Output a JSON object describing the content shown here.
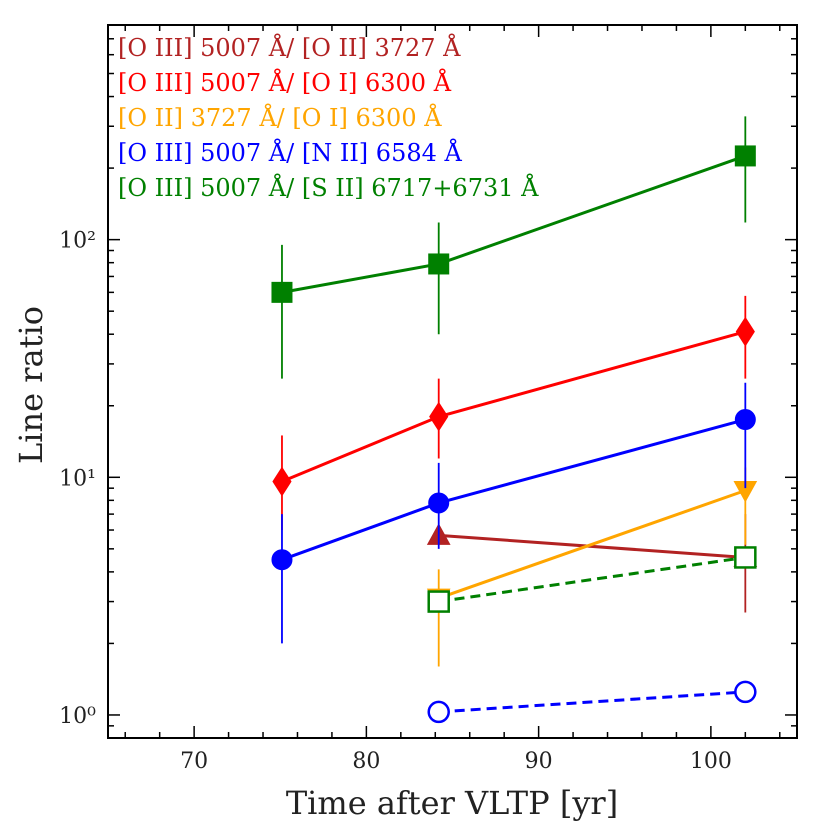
{
  "chart_data": {
    "type": "line",
    "title": "",
    "xlabel": "Time after VLTP [yr]",
    "ylabel": "Line ratio",
    "xlim": [
      65,
      105
    ],
    "ylim": [
      0.8,
      800
    ],
    "yscale": "log",
    "xticks": [
      70,
      80,
      90,
      100
    ],
    "yticks": [
      {
        "value": 1,
        "label": "10⁰"
      },
      {
        "value": 10,
        "label": "10¹"
      },
      {
        "value": 100,
        "label": "10²"
      }
    ],
    "legend_position": "top-left",
    "series": [
      {
        "name": "[O III] 5007 Å/ [O II] 3727 Å",
        "color": "#b22222",
        "marker": "triangle-up",
        "filled": true,
        "linestyle": "solid",
        "points": [
          {
            "x": 84.2,
            "y": 5.7,
            "lo": 5.7,
            "hi": 5.7
          },
          {
            "x": 102,
            "y": 4.6,
            "lo": 2.7,
            "hi": 7.0
          }
        ]
      },
      {
        "name": "[O III] 5007 Å/ [O I] 6300 Å",
        "color": "#ff0000",
        "marker": "diamond",
        "filled": true,
        "linestyle": "solid",
        "points": [
          {
            "x": 75.1,
            "y": 9.6,
            "lo": 6.0,
            "hi": 15.0
          },
          {
            "x": 84.2,
            "y": 18.0,
            "lo": 12.0,
            "hi": 26.0
          },
          {
            "x": 102,
            "y": 41.0,
            "lo": 26.0,
            "hi": 58.0
          }
        ]
      },
      {
        "name": "[O II] 3727 Å/ [O I] 6300 Å",
        "color": "#ffa500",
        "marker": "triangle-down",
        "filled": true,
        "linestyle": "solid",
        "points": [
          {
            "x": 84.2,
            "y": 3.1,
            "lo": 1.6,
            "hi": 4.1
          },
          {
            "x": 102,
            "y": 8.8,
            "lo": 5.2,
            "hi": 11.0
          }
        ]
      },
      {
        "name": "[O III] 5007 Å/ [N II] 6584 Å",
        "color": "#0000ff",
        "marker": "circle",
        "filled": true,
        "linestyle": "solid",
        "points": [
          {
            "x": 75.1,
            "y": 4.5,
            "lo": 2.0,
            "hi": 7.0
          },
          {
            "x": 84.2,
            "y": 7.8,
            "lo": 5.0,
            "hi": 11.5
          },
          {
            "x": 102,
            "y": 17.5,
            "lo": 9.0,
            "hi": 25.0
          }
        ]
      },
      {
        "name": "[O III] 5007 Å/ [S II] 6717+6731 Å",
        "color": "#008000",
        "marker": "square",
        "filled": true,
        "linestyle": "solid",
        "points": [
          {
            "x": 75.1,
            "y": 60.0,
            "lo": 26.0,
            "hi": 95.0
          },
          {
            "x": 84.2,
            "y": 79.0,
            "lo": 40.0,
            "hi": 118.0
          },
          {
            "x": 102,
            "y": 225.0,
            "lo": 118.0,
            "hi": 330.0
          }
        ]
      },
      {
        "name": "",
        "color": "#008000",
        "marker": "square",
        "filled": false,
        "linestyle": "dashed",
        "points": [
          {
            "x": 84.2,
            "y": 3.0,
            "lo": 3.0,
            "hi": 3.0
          },
          {
            "x": 102,
            "y": 4.6,
            "lo": 4.6,
            "hi": 4.6
          }
        ]
      },
      {
        "name": "",
        "color": "#0000ff",
        "marker": "circle",
        "filled": false,
        "linestyle": "dashed",
        "points": [
          {
            "x": 84.2,
            "y": 1.03,
            "lo": 1.03,
            "hi": 1.03
          },
          {
            "x": 102,
            "y": 1.25,
            "lo": 1.25,
            "hi": 1.25
          }
        ]
      }
    ]
  }
}
